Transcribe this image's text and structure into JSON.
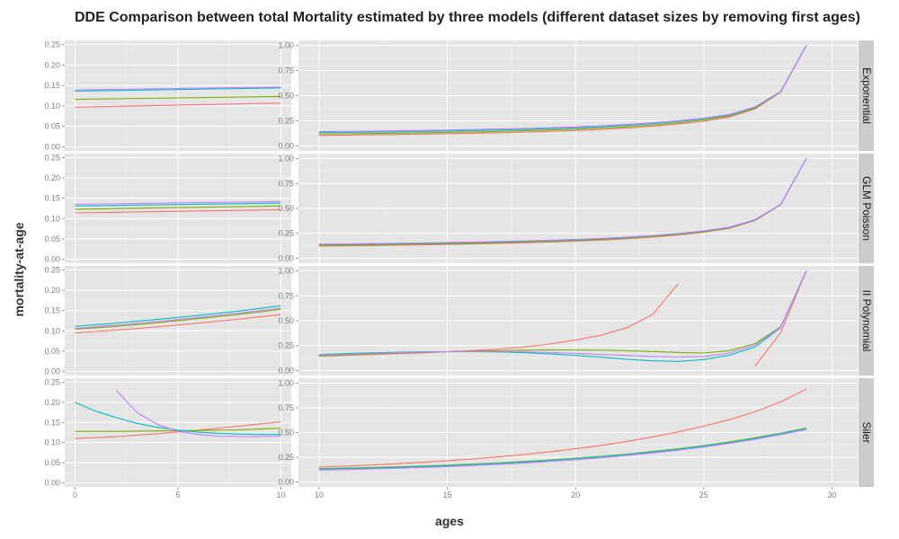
{
  "chart_data": {
    "type": "line",
    "title": "DDE Comparison between total Mortality estimated by three models (different dataset sizes by removing first ages)",
    "xlabel": "ages",
    "ylabel": "mortality-at-age",
    "colors": [
      "#F8766D",
      "#7CAE00",
      "#00BFC4",
      "#C77CFF"
    ],
    "colors_note": "series are unlabeled in the figure (no legend shown)",
    "grid": true,
    "legend": "none",
    "left_panels": {
      "xlim": [
        -0.5,
        10.5
      ],
      "ylim": [
        -0.01,
        0.26
      ],
      "x_ticks": [
        0,
        5,
        10
      ],
      "x_tick_labels": [
        "0",
        "5",
        "10"
      ],
      "y_ticks": [
        0,
        0.05,
        0.1,
        0.15,
        0.2,
        0.25
      ],
      "y_tick_labels": [
        "0.00",
        "0.05",
        "0.10",
        "0.15",
        "0.20",
        "0.25"
      ]
    },
    "right_panels": {
      "xlim": [
        9.2,
        31
      ],
      "ylim": [
        -0.05,
        1.05
      ],
      "x_ticks": [
        10,
        15,
        20,
        25,
        30
      ],
      "x_tick_labels": [
        "10",
        "15",
        "20",
        "25",
        "30"
      ],
      "y_ticks": [
        0,
        0.25,
        0.5,
        0.75,
        1
      ],
      "y_tick_labels": [
        "0.00",
        "0.25",
        "0.50",
        "0.75",
        "1.00"
      ]
    },
    "rows": [
      {
        "strip": "Exponential",
        "left": [
          {
            "x": [
              0,
              10
            ],
            "y": [
              0.097,
              0.107
            ]
          },
          {
            "x": [
              0,
              10
            ],
            "y": [
              0.116,
              0.123
            ]
          },
          {
            "x": [
              0,
              10
            ],
            "y": [
              0.136,
              0.144
            ]
          },
          {
            "x": [
              0,
              10
            ],
            "y": [
              0.139,
              0.146
            ]
          }
        ],
        "right": [
          {
            "x": [
              10,
              11,
              12,
              13,
              14,
              15,
              16,
              17,
              18,
              19,
              20,
              21,
              22,
              23,
              24,
              25,
              26,
              27,
              28,
              29
            ],
            "y": [
              0.105,
              0.107,
              0.11,
              0.113,
              0.117,
              0.121,
              0.126,
              0.131,
              0.137,
              0.145,
              0.153,
              0.164,
              0.177,
              0.196,
              0.217,
              0.245,
              0.287,
              0.368,
              0.535,
              1.0
            ]
          },
          {
            "x": [
              10,
              11,
              12,
              13,
              14,
              15,
              16,
              17,
              18,
              19,
              20,
              21,
              22,
              23,
              24,
              25,
              26,
              27,
              28,
              29
            ],
            "y": [
              0.118,
              0.12,
              0.123,
              0.126,
              0.13,
              0.134,
              0.139,
              0.144,
              0.15,
              0.158,
              0.166,
              0.177,
              0.19,
              0.208,
              0.23,
              0.258,
              0.298,
              0.376,
              0.538,
              1.0
            ]
          },
          {
            "x": [
              10,
              11,
              12,
              13,
              14,
              15,
              16,
              17,
              18,
              19,
              20,
              21,
              22,
              23,
              24,
              25,
              26,
              27,
              28,
              29
            ],
            "y": [
              0.132,
              0.134,
              0.137,
              0.14,
              0.144,
              0.148,
              0.153,
              0.158,
              0.164,
              0.172,
              0.18,
              0.191,
              0.204,
              0.222,
              0.243,
              0.27,
              0.308,
              0.384,
              0.54,
              1.0
            ]
          },
          {
            "x": [
              10,
              11,
              12,
              13,
              14,
              15,
              16,
              17,
              18,
              19,
              20,
              21,
              22,
              23,
              24,
              25,
              26,
              27,
              28,
              29
            ],
            "y": [
              0.142,
              0.144,
              0.147,
              0.15,
              0.154,
              0.158,
              0.163,
              0.168,
              0.174,
              0.181,
              0.189,
              0.2,
              0.213,
              0.23,
              0.25,
              0.276,
              0.313,
              0.388,
              0.542,
              1.0
            ]
          }
        ]
      },
      {
        "strip": "GLM Poisson",
        "left": [
          {
            "x": [
              0,
              10
            ],
            "y": [
              0.114,
              0.122
            ]
          },
          {
            "x": [
              0,
              10
            ],
            "y": [
              0.123,
              0.131
            ]
          },
          {
            "x": [
              0,
              10
            ],
            "y": [
              0.131,
              0.138
            ]
          },
          {
            "x": [
              0,
              10
            ],
            "y": [
              0.135,
              0.142
            ]
          }
        ],
        "right": [
          {
            "x": [
              10,
              11,
              12,
              13,
              14,
              15,
              16,
              17,
              18,
              19,
              20,
              21,
              22,
              23,
              24,
              25,
              26,
              27,
              28,
              29
            ],
            "y": [
              0.122,
              0.124,
              0.127,
              0.13,
              0.134,
              0.138,
              0.143,
              0.149,
              0.155,
              0.163,
              0.171,
              0.182,
              0.195,
              0.212,
              0.233,
              0.26,
              0.3,
              0.378,
              0.538,
              1.0
            ]
          },
          {
            "x": [
              10,
              11,
              12,
              13,
              14,
              15,
              16,
              17,
              18,
              19,
              20,
              21,
              22,
              23,
              24,
              25,
              26,
              27,
              28,
              29
            ],
            "y": [
              0.13,
              0.132,
              0.135,
              0.138,
              0.142,
              0.146,
              0.151,
              0.156,
              0.162,
              0.17,
              0.178,
              0.189,
              0.202,
              0.219,
              0.24,
              0.266,
              0.305,
              0.381,
              0.539,
              1.0
            ]
          },
          {
            "x": [
              10,
              11,
              12,
              13,
              14,
              15,
              16,
              17,
              18,
              19,
              20,
              21,
              22,
              23,
              24,
              25,
              26,
              27,
              28,
              29
            ],
            "y": [
              0.138,
              0.14,
              0.143,
              0.146,
              0.15,
              0.154,
              0.159,
              0.164,
              0.17,
              0.177,
              0.185,
              0.196,
              0.208,
              0.225,
              0.245,
              0.271,
              0.309,
              0.385,
              0.54,
              1.0
            ]
          },
          {
            "x": [
              10,
              11,
              12,
              13,
              14,
              15,
              16,
              17,
              18,
              19,
              20,
              21,
              22,
              23,
              24,
              25,
              26,
              27,
              28,
              29
            ],
            "y": [
              0.142,
              0.144,
              0.147,
              0.15,
              0.154,
              0.158,
              0.163,
              0.168,
              0.174,
              0.181,
              0.189,
              0.199,
              0.212,
              0.228,
              0.248,
              0.274,
              0.312,
              0.387,
              0.541,
              1.0
            ]
          }
        ]
      },
      {
        "strip": "II Polynomial",
        "left": [
          {
            "x": [
              0,
              2,
              4,
              6,
              8,
              10
            ],
            "y": [
              0.095,
              0.102,
              0.11,
              0.119,
              0.129,
              0.14
            ]
          },
          {
            "x": [
              0,
              2,
              4,
              6,
              8,
              10
            ],
            "y": [
              0.104,
              0.111,
              0.12,
              0.13,
              0.141,
              0.153
            ]
          },
          {
            "x": [
              0,
              2,
              4,
              6,
              8,
              10
            ],
            "y": [
              0.111,
              0.119,
              0.128,
              0.138,
              0.149,
              0.162
            ]
          },
          {
            "x": [
              0,
              2,
              4,
              6,
              8,
              10
            ],
            "y": [
              0.106,
              0.114,
              0.123,
              0.133,
              0.144,
              0.156
            ]
          }
        ],
        "right": [
          {
            "x": [
              10,
              11,
              12,
              13,
              14,
              15,
              16,
              17,
              18,
              19,
              20,
              21,
              22,
              23,
              24
            ],
            "y": [
              0.145,
              0.152,
              0.16,
              0.168,
              0.177,
              0.188,
              0.2,
              0.216,
              0.237,
              0.266,
              0.305,
              0.355,
              0.43,
              0.56,
              0.87
            ]
          },
          {
            "x": [
              27,
              28,
              29
            ],
            "y": [
              0.045,
              0.38,
              1.0
            ]
          },
          {
            "x": [
              10,
              11,
              12,
              13,
              14,
              15,
              16,
              17,
              18,
              19,
              20,
              21,
              22,
              23,
              24,
              25,
              26,
              27,
              28,
              29
            ],
            "y": [
              0.145,
              0.155,
              0.165,
              0.174,
              0.182,
              0.189,
              0.195,
              0.2,
              0.204,
              0.206,
              0.206,
              0.204,
              0.199,
              0.191,
              0.182,
              0.175,
              0.2,
              0.27,
              0.44,
              1.0
            ]
          },
          {
            "x": [
              10,
              11,
              12,
              13,
              14,
              15,
              16,
              17,
              18,
              19,
              20,
              21,
              22,
              23,
              24,
              25,
              26,
              27,
              28,
              29
            ],
            "y": [
              0.16,
              0.17,
              0.177,
              0.183,
              0.187,
              0.189,
              0.189,
              0.186,
              0.179,
              0.167,
              0.152,
              0.134,
              0.113,
              0.097,
              0.092,
              0.11,
              0.155,
              0.235,
              0.43,
              1.0
            ]
          },
          {
            "x": [
              10,
              11,
              12,
              13,
              14,
              15,
              16,
              17,
              18,
              19,
              20,
              21,
              22,
              23,
              24,
              25,
              26,
              27,
              28,
              29
            ],
            "y": [
              0.155,
              0.163,
              0.171,
              0.178,
              0.184,
              0.188,
              0.19,
              0.19,
              0.187,
              0.181,
              0.172,
              0.162,
              0.151,
              0.141,
              0.135,
              0.14,
              0.175,
              0.255,
              0.435,
              1.0
            ]
          }
        ]
      },
      {
        "strip": "Siler",
        "left": [
          {
            "x": [
              0,
              2,
              4,
              6,
              8,
              10
            ],
            "y": [
              0.11,
              0.115,
              0.122,
              0.131,
              0.141,
              0.152
            ]
          },
          {
            "x": [
              0,
              2,
              4,
              6,
              8,
              10
            ],
            "y": [
              0.128,
              0.128,
              0.129,
              0.13,
              0.132,
              0.136
            ]
          },
          {
            "x": [
              0,
              1,
              2,
              3,
              4,
              5,
              6,
              7,
              8,
              9,
              10
            ],
            "y": [
              0.2,
              0.178,
              0.162,
              0.148,
              0.138,
              0.131,
              0.126,
              0.123,
              0.121,
              0.12,
              0.12
            ]
          },
          {
            "x": [
              2,
              3,
              4,
              5,
              6,
              7,
              8,
              9,
              10
            ],
            "y": [
              0.23,
              0.175,
              0.145,
              0.128,
              0.12,
              0.116,
              0.115,
              0.115,
              0.116
            ]
          }
        ],
        "right": [
          {
            "x": [
              10,
              11,
              12,
              13,
              14,
              15,
              16,
              17,
              18,
              19,
              20,
              21,
              22,
              23,
              24,
              25,
              26,
              27,
              28,
              29
            ],
            "y": [
              0.15,
              0.16,
              0.171,
              0.184,
              0.198,
              0.215,
              0.233,
              0.254,
              0.278,
              0.305,
              0.335,
              0.37,
              0.41,
              0.455,
              0.506,
              0.565,
              0.63,
              0.71,
              0.81,
              0.94
            ]
          },
          {
            "x": [
              10,
              11,
              12,
              13,
              14,
              15,
              16,
              17,
              18,
              19,
              20,
              21,
              22,
              23,
              24,
              25,
              26,
              27,
              28,
              29
            ],
            "y": [
              0.135,
              0.14,
              0.146,
              0.153,
              0.161,
              0.17,
              0.181,
              0.193,
              0.207,
              0.222,
              0.24,
              0.26,
              0.282,
              0.308,
              0.336,
              0.368,
              0.405,
              0.447,
              0.494,
              0.545
            ]
          },
          {
            "x": [
              10,
              11,
              12,
              13,
              14,
              15,
              16,
              17,
              18,
              19,
              20,
              21,
              22,
              23,
              24,
              25,
              26,
              27,
              28,
              29
            ],
            "y": [
              0.13,
              0.135,
              0.141,
              0.148,
              0.156,
              0.165,
              0.176,
              0.188,
              0.202,
              0.217,
              0.235,
              0.255,
              0.277,
              0.303,
              0.331,
              0.363,
              0.4,
              0.442,
              0.489,
              0.54
            ]
          },
          {
            "x": [
              10,
              11,
              12,
              13,
              14,
              15,
              16,
              17,
              18,
              19,
              20,
              21,
              22,
              23,
              24,
              25,
              26,
              27,
              28,
              29
            ],
            "y": [
              0.12,
              0.125,
              0.131,
              0.138,
              0.146,
              0.155,
              0.166,
              0.178,
              0.192,
              0.207,
              0.225,
              0.245,
              0.267,
              0.293,
              0.321,
              0.353,
              0.39,
              0.432,
              0.479,
              0.53
            ]
          }
        ]
      }
    ]
  }
}
